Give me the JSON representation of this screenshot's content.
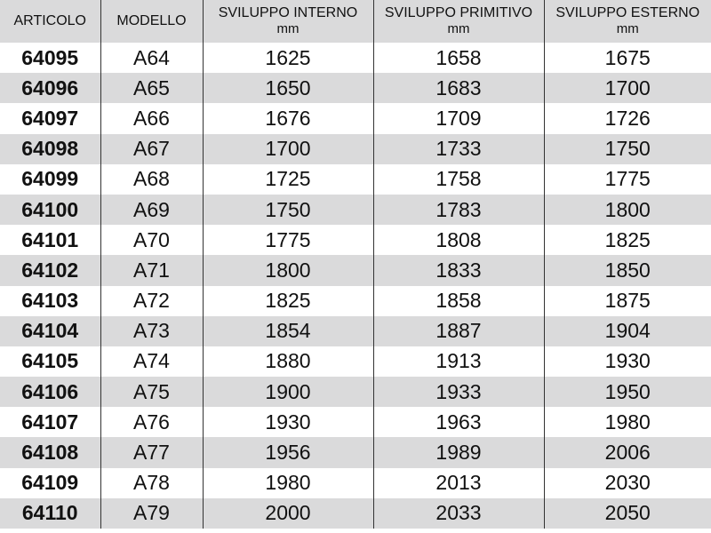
{
  "headers": [
    {
      "label": "ARTICOLO",
      "unit": ""
    },
    {
      "label": "MODELLO",
      "unit": ""
    },
    {
      "label": "SVILUPPO INTERNO",
      "unit": "mm"
    },
    {
      "label": "SVILUPPO PRIMITIVO",
      "unit": "mm"
    },
    {
      "label": "SVILUPPO ESTERNO",
      "unit": "mm"
    }
  ],
  "rows": [
    [
      "64095",
      "A64",
      "1625",
      "1658",
      "1675"
    ],
    [
      "64096",
      "A65",
      "1650",
      "1683",
      "1700"
    ],
    [
      "64097",
      "A66",
      "1676",
      "1709",
      "1726"
    ],
    [
      "64098",
      "A67",
      "1700",
      "1733",
      "1750"
    ],
    [
      "64099",
      "A68",
      "1725",
      "1758",
      "1775"
    ],
    [
      "64100",
      "A69",
      "1750",
      "1783",
      "1800"
    ],
    [
      "64101",
      "A70",
      "1775",
      "1808",
      "1825"
    ],
    [
      "64102",
      "A71",
      "1800",
      "1833",
      "1850"
    ],
    [
      "64103",
      "A72",
      "1825",
      "1858",
      "1875"
    ],
    [
      "64104",
      "A73",
      "1854",
      "1887",
      "1904"
    ],
    [
      "64105",
      "A74",
      "1880",
      "1913",
      "1930"
    ],
    [
      "64106",
      "A75",
      "1900",
      "1933",
      "1950"
    ],
    [
      "64107",
      "A76",
      "1930",
      "1963",
      "1980"
    ],
    [
      "64108",
      "A77",
      "1956",
      "1989",
      "2006"
    ],
    [
      "64109",
      "A78",
      "1980",
      "2013",
      "2030"
    ],
    [
      "64110",
      "A79",
      "2000",
      "2033",
      "2050"
    ]
  ],
  "colors": {
    "stripe": "#dadadb",
    "header": "#dadadb"
  }
}
